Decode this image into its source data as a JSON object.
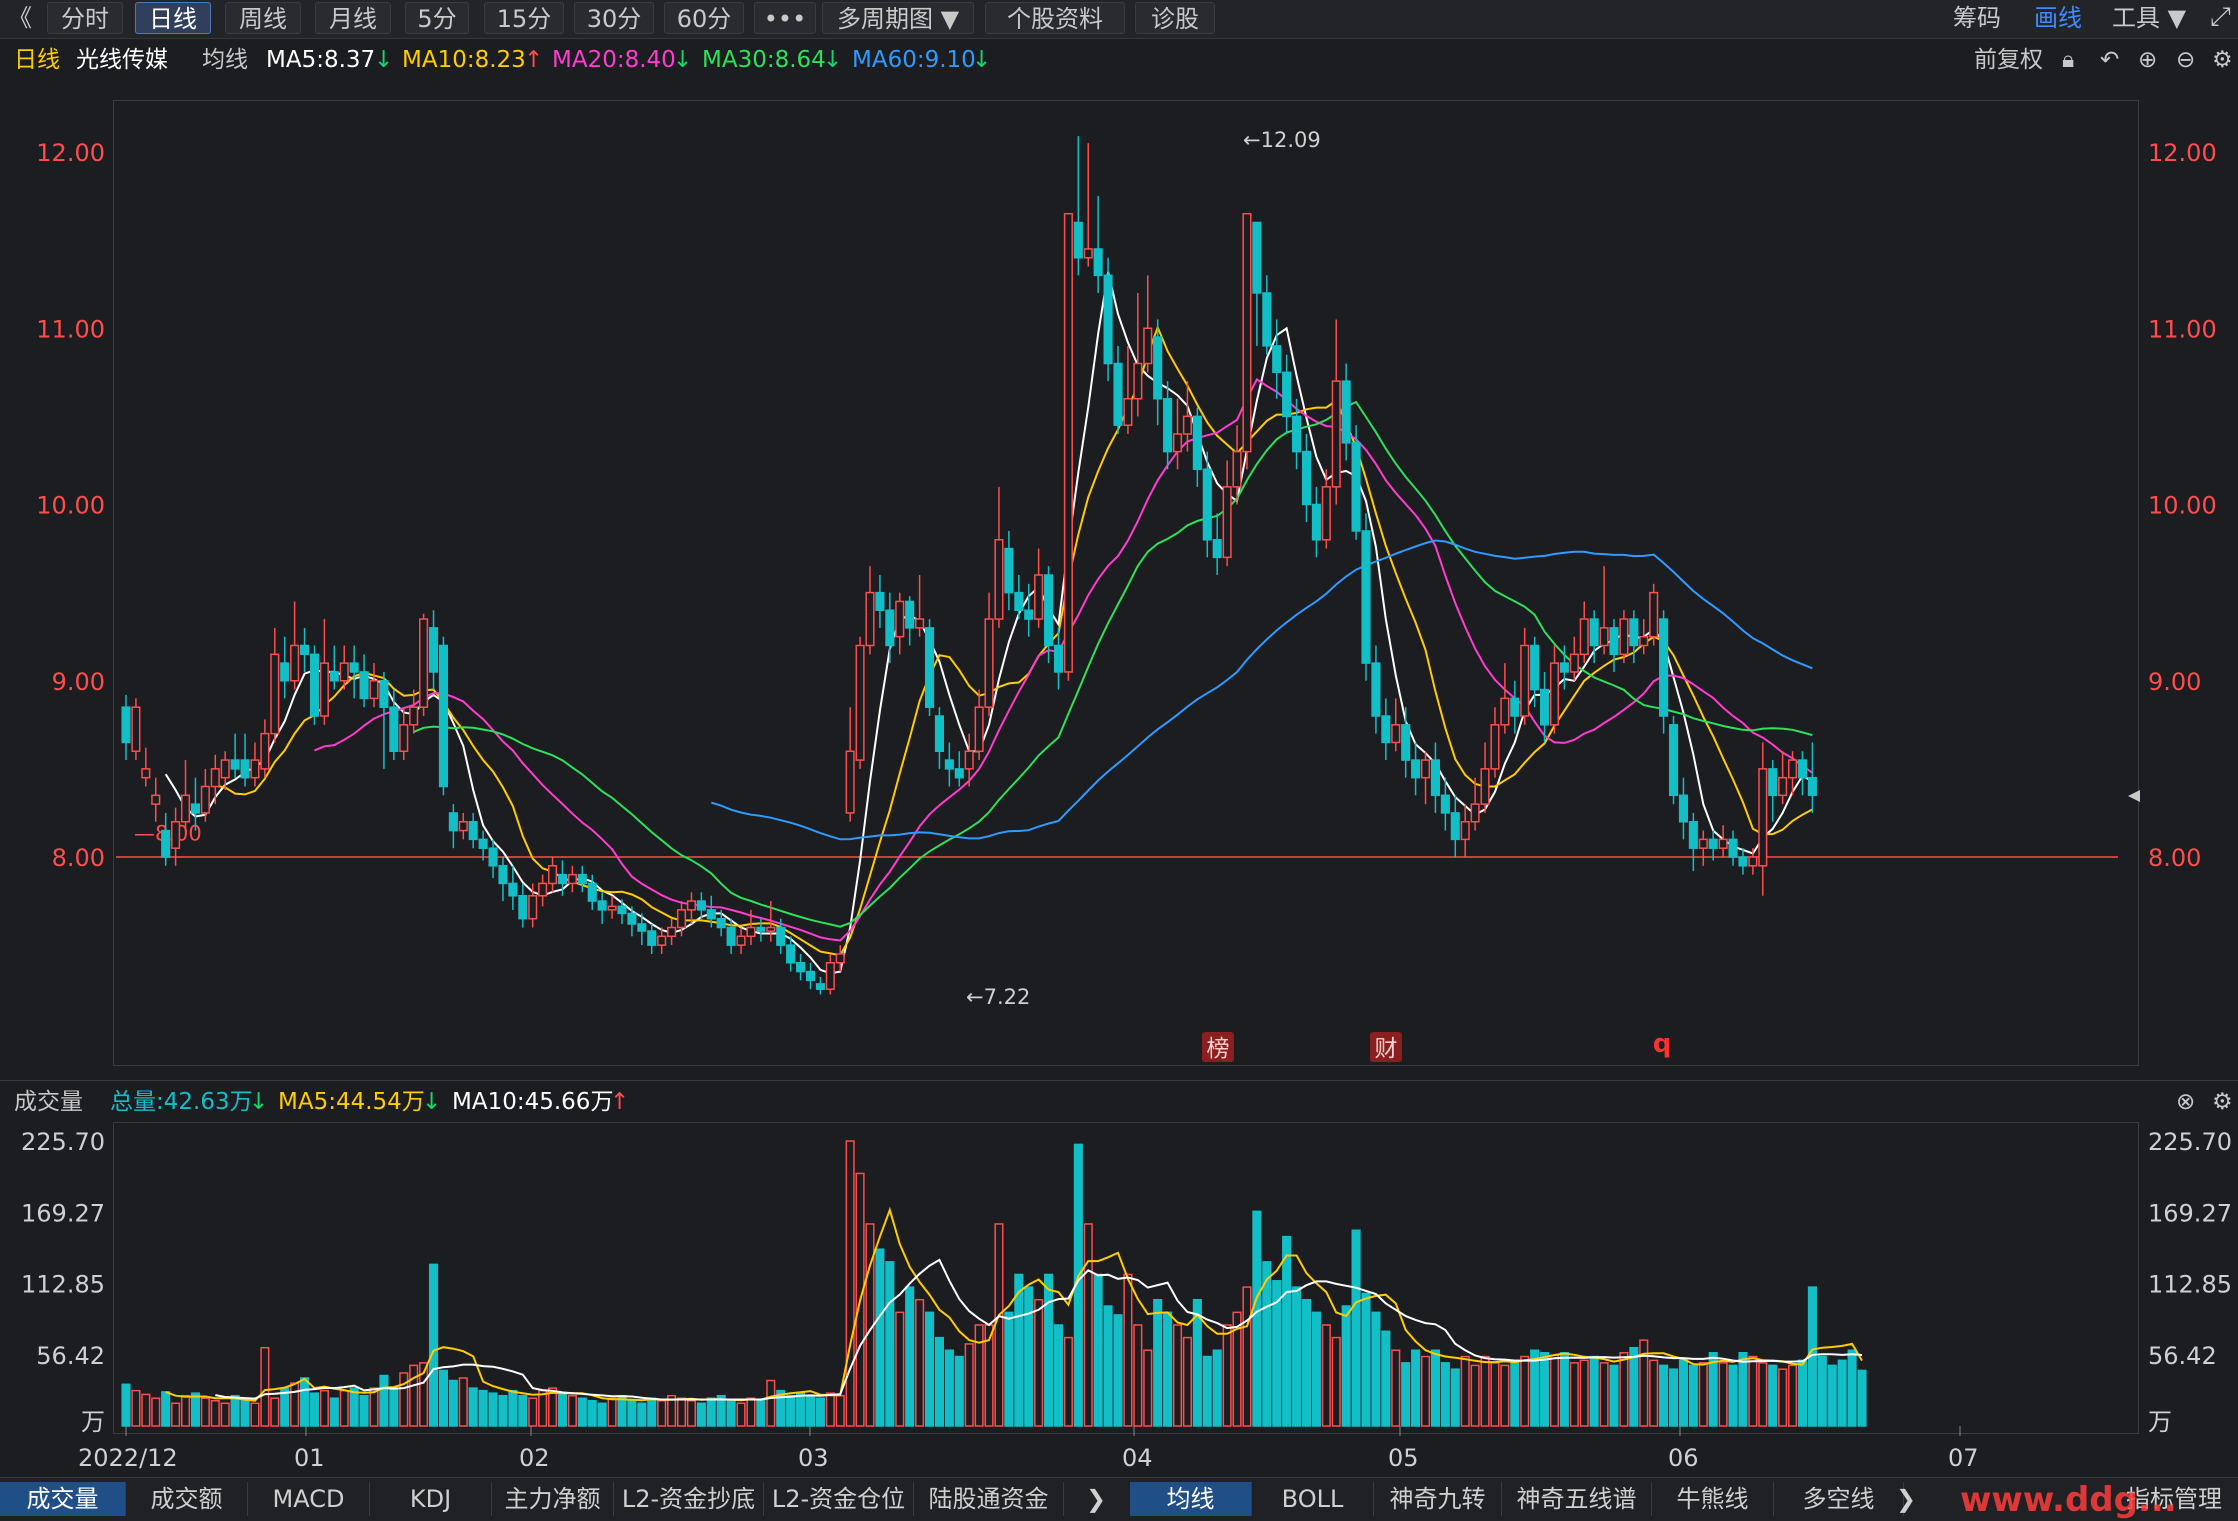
{
  "toolbar": {
    "back": "《",
    "tabs": [
      "分时",
      "日线",
      "周线",
      "月线",
      "5分",
      "15分",
      "30分",
      "60分",
      "•••",
      "多周期图 ▼",
      "个股资料",
      "诊股"
    ],
    "active_tab": 1,
    "right": [
      "筹码",
      "画线",
      "工具 ▼"
    ],
    "right_active": 1
  },
  "ma_bar": {
    "period": "日线",
    "stock": "光线传媒",
    "ma_label": "均线",
    "ma5": "MA5:8.37",
    "ma5_arrow": "↓",
    "ma10": "MA10:8.23",
    "ma10_arrow": "↑",
    "ma20": "MA20:8.40",
    "ma20_arrow": "↓",
    "ma30": "MA30:8.64",
    "ma30_arrow": "↓",
    "ma60": "MA60:9.10",
    "ma60_arrow": "↓",
    "adjust": "前复权"
  },
  "vol_bar": {
    "title": "成交量",
    "total": "总量:42.63万",
    "total_arrow": "↓",
    "ma5": "MA5:44.54万",
    "ma5_arrow": "↓",
    "ma10": "MA10:45.66万",
    "ma10_arrow": "↑"
  },
  "bottom_tabs_left": [
    "成交量",
    "成交额",
    "MACD",
    "KDJ",
    "主力净额",
    "L2-资金抄底",
    "L2-资金仓位",
    "陆股通资金"
  ],
  "bottom_tabs_right": [
    "均线",
    "BOLL",
    "神奇九转",
    "神奇五线谱",
    "牛熊线",
    "多空线"
  ],
  "bottom_right": "指标管理",
  "watermark": "www.ddg...",
  "colors": {
    "up": "#ff4d4d",
    "down": "#13bfc7",
    "ma5": "#ffffff",
    "ma10": "#ffcc00",
    "ma20": "#ff3ccf",
    "ma30": "#2ee05a",
    "ma60": "#2f9bff",
    "accent": "#3e8bff"
  },
  "chart_data": {
    "type": "candlestick",
    "price_axis": {
      "ticks": [
        "12.00",
        "11.00",
        "10.00",
        "9.00",
        "8.00"
      ],
      "ylim": [
        6.9,
        12.2
      ]
    },
    "date_axis": [
      "2022/12",
      "01",
      "02",
      "03",
      "04",
      "05",
      "06",
      "07"
    ],
    "annotations": {
      "high": "←12.09",
      "low": "←7.22",
      "level": "8.00",
      "markers": [
        "榜",
        "财",
        "q"
      ]
    },
    "volume_axis": {
      "ticks": [
        "225.70",
        "169.27",
        "112.85",
        "56.42",
        "万"
      ],
      "ylim": [
        0,
        225.7
      ]
    },
    "candles": [
      [
        8.85,
        8.65,
        8.92,
        8.55
      ],
      [
        8.6,
        8.85,
        8.9,
        8.55
      ],
      [
        8.45,
        8.5,
        8.62,
        8.4
      ],
      [
        8.3,
        8.35,
        8.45,
        8.2
      ],
      [
        8.15,
        8.0,
        8.25,
        7.95
      ],
      [
        8.05,
        8.2,
        8.28,
        7.95
      ],
      [
        8.2,
        8.35,
        8.55,
        8.15
      ],
      [
        8.3,
        8.25,
        8.45,
        8.15
      ],
      [
        8.25,
        8.4,
        8.5,
        8.2
      ],
      [
        8.4,
        8.5,
        8.58,
        8.3
      ],
      [
        8.45,
        8.55,
        8.6,
        8.38
      ],
      [
        8.55,
        8.5,
        8.7,
        8.45
      ],
      [
        8.55,
        8.45,
        8.7,
        8.4
      ],
      [
        8.45,
        8.55,
        8.65,
        8.4
      ],
      [
        8.5,
        8.7,
        8.78,
        8.45
      ],
      [
        8.7,
        9.15,
        9.3,
        8.65
      ],
      [
        9.1,
        9.0,
        9.25,
        8.9
      ],
      [
        9.0,
        9.2,
        9.45,
        8.95
      ],
      [
        9.2,
        9.15,
        9.3,
        9.05
      ],
      [
        9.15,
        8.8,
        9.2,
        8.75
      ],
      [
        8.8,
        9.1,
        9.35,
        8.75
      ],
      [
        9.05,
        9.0,
        9.2,
        8.95
      ],
      [
        9.0,
        9.1,
        9.2,
        8.95
      ],
      [
        9.1,
        9.05,
        9.2,
        8.9
      ],
      [
        9.05,
        8.9,
        9.15,
        8.85
      ],
      [
        8.9,
        9.0,
        9.1,
        8.85
      ],
      [
        9.0,
        8.85,
        9.05,
        8.5
      ],
      [
        8.85,
        8.6,
        8.95,
        8.55
      ],
      [
        8.6,
        8.75,
        8.85,
        8.55
      ],
      [
        8.75,
        8.85,
        8.95,
        8.7
      ],
      [
        8.85,
        9.35,
        9.38,
        8.8
      ],
      [
        9.3,
        9.05,
        9.4,
        8.95
      ],
      [
        9.2,
        8.4,
        9.25,
        8.35
      ],
      [
        8.25,
        8.15,
        8.3,
        8.05
      ],
      [
        8.15,
        8.2,
        8.25,
        8.1
      ],
      [
        8.2,
        8.1,
        8.25,
        8.05
      ],
      [
        8.1,
        8.05,
        8.15,
        7.98
      ],
      [
        8.05,
        7.95,
        8.1,
        7.88
      ],
      [
        7.95,
        7.85,
        8.0,
        7.75
      ],
      [
        7.85,
        7.78,
        7.95,
        7.7
      ],
      [
        7.78,
        7.65,
        7.85,
        7.6
      ],
      [
        7.65,
        7.78,
        7.85,
        7.6
      ],
      [
        7.78,
        7.85,
        7.9,
        7.72
      ],
      [
        7.85,
        7.95,
        8.0,
        7.8
      ],
      [
        7.9,
        7.85,
        7.98,
        7.78
      ],
      [
        7.85,
        7.9,
        7.95,
        7.8
      ],
      [
        7.9,
        7.85,
        7.95,
        7.8
      ],
      [
        7.85,
        7.75,
        7.9,
        7.7
      ],
      [
        7.75,
        7.7,
        7.8,
        7.62
      ],
      [
        7.7,
        7.72,
        7.78,
        7.65
      ],
      [
        7.72,
        7.68,
        7.76,
        7.62
      ],
      [
        7.68,
        7.62,
        7.72,
        7.55
      ],
      [
        7.62,
        7.58,
        7.68,
        7.5
      ],
      [
        7.58,
        7.5,
        7.62,
        7.45
      ],
      [
        7.5,
        7.55,
        7.6,
        7.45
      ],
      [
        7.55,
        7.6,
        7.65,
        7.5
      ],
      [
        7.6,
        7.7,
        7.75,
        7.55
      ],
      [
        7.7,
        7.75,
        7.8,
        7.62
      ],
      [
        7.75,
        7.7,
        7.8,
        7.65
      ],
      [
        7.7,
        7.65,
        7.78,
        7.6
      ],
      [
        7.65,
        7.6,
        7.7,
        7.55
      ],
      [
        7.6,
        7.5,
        7.65,
        7.45
      ],
      [
        7.5,
        7.55,
        7.6,
        7.45
      ],
      [
        7.55,
        7.6,
        7.7,
        7.5
      ],
      [
        7.6,
        7.58,
        7.65,
        7.52
      ],
      [
        7.58,
        7.6,
        7.75,
        7.52
      ],
      [
        7.6,
        7.5,
        7.65,
        7.45
      ],
      [
        7.5,
        7.4,
        7.55,
        7.35
      ],
      [
        7.4,
        7.35,
        7.45,
        7.3
      ],
      [
        7.35,
        7.3,
        7.4,
        7.25
      ],
      [
        7.28,
        7.25,
        7.32,
        7.22
      ],
      [
        7.25,
        7.4,
        7.45,
        7.22
      ],
      [
        7.4,
        7.45,
        7.5,
        7.35
      ],
      [
        8.25,
        8.6,
        8.85,
        8.2
      ],
      [
        8.55,
        9.2,
        9.25,
        8.5
      ],
      [
        9.2,
        9.5,
        9.65,
        9.15
      ],
      [
        9.5,
        9.4,
        9.6,
        9.3
      ],
      [
        9.4,
        9.2,
        9.5,
        9.1
      ],
      [
        9.25,
        9.45,
        9.5,
        9.15
      ],
      [
        9.45,
        9.3,
        9.48,
        9.2
      ],
      [
        9.3,
        9.35,
        9.6,
        9.25
      ],
      [
        9.3,
        8.85,
        9.35,
        8.8
      ],
      [
        8.8,
        8.6,
        8.85,
        8.5
      ],
      [
        8.55,
        8.5,
        8.65,
        8.4
      ],
      [
        8.5,
        8.45,
        8.6,
        8.4
      ],
      [
        8.5,
        8.6,
        8.7,
        8.4
      ],
      [
        8.6,
        8.85,
        8.95,
        8.55
      ],
      [
        8.85,
        9.35,
        9.5,
        8.8
      ],
      [
        9.35,
        9.8,
        10.1,
        9.3
      ],
      [
        9.75,
        9.5,
        9.85,
        9.4
      ],
      [
        9.5,
        9.4,
        9.6,
        9.35
      ],
      [
        9.4,
        9.35,
        9.55,
        9.25
      ],
      [
        9.35,
        9.6,
        9.75,
        9.3
      ],
      [
        9.6,
        9.2,
        9.65,
        9.1
      ],
      [
        9.2,
        9.05,
        9.3,
        8.95
      ],
      [
        9.05,
        11.65,
        11.65,
        9.0
      ],
      [
        11.6,
        11.4,
        12.09,
        11.3
      ],
      [
        11.4,
        11.45,
        12.05,
        11.35
      ],
      [
        11.45,
        11.3,
        11.75,
        11.2
      ],
      [
        11.3,
        10.8,
        11.4,
        10.7
      ],
      [
        10.8,
        10.45,
        10.9,
        10.4
      ],
      [
        10.45,
        10.6,
        10.9,
        10.4
      ],
      [
        10.6,
        10.8,
        11.2,
        10.5
      ],
      [
        10.8,
        11.0,
        11.3,
        10.75
      ],
      [
        10.95,
        10.6,
        11.05,
        10.45
      ],
      [
        10.6,
        10.3,
        10.7,
        10.2
      ],
      [
        10.3,
        10.4,
        10.6,
        10.2
      ],
      [
        10.4,
        10.5,
        10.7,
        10.3
      ],
      [
        10.5,
        10.2,
        10.55,
        10.1
      ],
      [
        10.2,
        9.8,
        10.3,
        9.7
      ],
      [
        9.8,
        9.7,
        9.95,
        9.6
      ],
      [
        9.7,
        10.1,
        10.25,
        9.65
      ],
      [
        10.1,
        10.3,
        10.45,
        10.0
      ],
      [
        10.3,
        11.65,
        11.65,
        10.2
      ],
      [
        11.6,
        11.2,
        11.55,
        10.9
      ],
      [
        11.2,
        10.9,
        11.3,
        10.85
      ],
      [
        10.9,
        10.75,
        11.05,
        10.6
      ],
      [
        10.75,
        10.5,
        10.85,
        10.4
      ],
      [
        10.5,
        10.3,
        10.6,
        10.2
      ],
      [
        10.3,
        10.0,
        10.4,
        9.9
      ],
      [
        10.0,
        9.8,
        10.1,
        9.7
      ],
      [
        9.8,
        10.1,
        10.2,
        9.75
      ],
      [
        10.1,
        10.7,
        11.05,
        10.0
      ],
      [
        10.7,
        10.35,
        10.8,
        10.25
      ],
      [
        10.35,
        9.85,
        10.45,
        9.8
      ],
      [
        9.85,
        9.1,
        9.95,
        9.0
      ],
      [
        9.1,
        8.8,
        9.2,
        8.7
      ],
      [
        8.8,
        8.65,
        8.9,
        8.55
      ],
      [
        8.65,
        8.75,
        8.9,
        8.6
      ],
      [
        8.75,
        8.55,
        8.85,
        8.45
      ],
      [
        8.55,
        8.45,
        8.65,
        8.35
      ],
      [
        8.45,
        8.55,
        8.6,
        8.3
      ],
      [
        8.55,
        8.35,
        8.65,
        8.25
      ],
      [
        8.35,
        8.25,
        8.45,
        8.15
      ],
      [
        8.25,
        8.1,
        8.35,
        8.0
      ],
      [
        8.1,
        8.2,
        8.3,
        8.0
      ],
      [
        8.2,
        8.3,
        8.45,
        8.15
      ],
      [
        8.3,
        8.5,
        8.65,
        8.25
      ],
      [
        8.5,
        8.75,
        8.85,
        8.45
      ],
      [
        8.75,
        8.9,
        9.1,
        8.7
      ],
      [
        8.9,
        8.8,
        9.0,
        8.7
      ],
      [
        8.8,
        9.2,
        9.3,
        8.75
      ],
      [
        9.2,
        8.95,
        9.25,
        8.85
      ],
      [
        8.95,
        8.75,
        9.05,
        8.65
      ],
      [
        8.75,
        9.1,
        9.2,
        8.7
      ],
      [
        9.1,
        9.05,
        9.2,
        8.95
      ],
      [
        9.05,
        9.15,
        9.25,
        9.0
      ],
      [
        9.15,
        9.35,
        9.45,
        9.1
      ],
      [
        9.35,
        9.2,
        9.4,
        9.1
      ],
      [
        9.2,
        9.3,
        9.65,
        9.15
      ],
      [
        9.3,
        9.15,
        9.35,
        9.05
      ],
      [
        9.15,
        9.35,
        9.4,
        9.1
      ],
      [
        9.35,
        9.2,
        9.4,
        9.1
      ],
      [
        9.2,
        9.25,
        9.35,
        9.15
      ],
      [
        9.25,
        9.5,
        9.55,
        9.2
      ],
      [
        9.35,
        8.8,
        9.4,
        8.7
      ],
      [
        8.75,
        8.35,
        8.8,
        8.3
      ],
      [
        8.35,
        8.2,
        8.45,
        8.1
      ],
      [
        8.2,
        8.05,
        8.25,
        7.92
      ],
      [
        8.05,
        8.1,
        8.15,
        7.95
      ],
      [
        8.1,
        8.05,
        8.15,
        7.98
      ],
      [
        8.05,
        8.1,
        8.18,
        8.0
      ],
      [
        8.1,
        8.0,
        8.15,
        7.95
      ],
      [
        8.0,
        7.95,
        8.05,
        7.9
      ],
      [
        7.95,
        8.0,
        8.05,
        7.9
      ],
      [
        7.95,
        8.5,
        8.65,
        7.78
      ],
      [
        8.5,
        8.35,
        8.55,
        8.2
      ],
      [
        8.35,
        8.45,
        8.6,
        8.3
      ],
      [
        8.45,
        8.55,
        8.6,
        8.35
      ],
      [
        8.55,
        8.45,
        8.6,
        8.35
      ],
      [
        8.45,
        8.35,
        8.65,
        8.25
      ]
    ],
    "volume": [
      33,
      28,
      25,
      22,
      27,
      18,
      24,
      26,
      22,
      20,
      18,
      24,
      20,
      18,
      62,
      22,
      30,
      34,
      38,
      26,
      28,
      22,
      28,
      30,
      24,
      30,
      40,
      30,
      42,
      48,
      50,
      128,
      44,
      36,
      38,
      30,
      28,
      26,
      24,
      28,
      24,
      22,
      28,
      30,
      26,
      24,
      22,
      20,
      18,
      22,
      24,
      20,
      18,
      22,
      20,
      24,
      22,
      20,
      18,
      22,
      24,
      20,
      18,
      22,
      20,
      36,
      28,
      24,
      26,
      24,
      22,
      26,
      24,
      225.7,
      200,
      160,
      140,
      130,
      90,
      110,
      100,
      90,
      70,
      60,
      55,
      65,
      80,
      80,
      160,
      90,
      120,
      110,
      100,
      120,
      80,
      70,
      223,
      160,
      120,
      95,
      88,
      120,
      80,
      60,
      100,
      90,
      80,
      70,
      100,
      55,
      60,
      80,
      90,
      110,
      170,
      130,
      115,
      150,
      110,
      100,
      90,
      80,
      70,
      95,
      155,
      105,
      90,
      75,
      60,
      50,
      60,
      55,
      60,
      50,
      45,
      55,
      48,
      55,
      50,
      48,
      52,
      55,
      60,
      58,
      56,
      58,
      50,
      52,
      55,
      50,
      48,
      58,
      62,
      68,
      52,
      48,
      45,
      52,
      48,
      50,
      58,
      50,
      48,
      58,
      55,
      50,
      48,
      45,
      48,
      52,
      110,
      55,
      48,
      52,
      60,
      44
    ]
  }
}
